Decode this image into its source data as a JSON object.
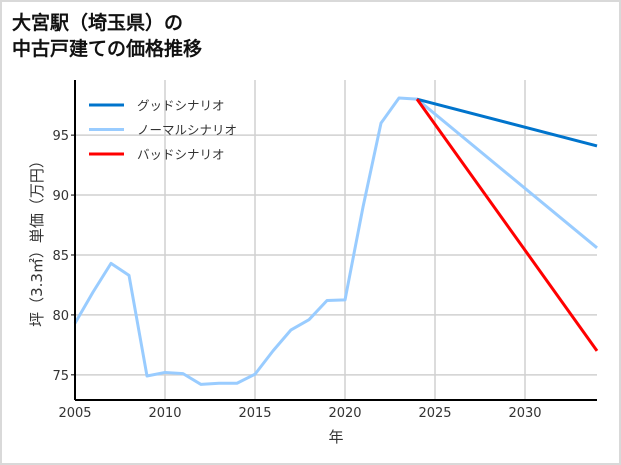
{
  "title_lines": [
    "大宮駅（埼玉県）の",
    "中古戸建ての価格推移"
  ],
  "chart_data": {
    "type": "line",
    "title": "大宮駅（埼玉県）の中古戸建ての価格推移",
    "xlabel": "年",
    "ylabel": "坪（3.3㎡）単価（万円）",
    "xlim": [
      2005,
      2034
    ],
    "ylim": [
      72.9,
      99.6
    ],
    "xticks": [
      2005,
      2010,
      2015,
      2020,
      2025,
      2030
    ],
    "yticks": [
      75,
      80,
      85,
      90,
      95
    ],
    "grid": true,
    "legend_position": "top-left",
    "series": [
      {
        "name": "グッドシナリオ",
        "color": "#0074cc",
        "x": [
          2024,
          2034
        ],
        "y": [
          98.0,
          94.1
        ]
      },
      {
        "name": "ノーマルシナリオ",
        "color": "#99ccff",
        "x": [
          2005,
          2006,
          2007,
          2008,
          2009,
          2010,
          2011,
          2012,
          2013,
          2014,
          2015,
          2016,
          2017,
          2018,
          2019,
          2020,
          2021,
          2022,
          2023,
          2024,
          2034
        ],
        "y": [
          79.3,
          81.9,
          84.3,
          83.3,
          74.9,
          75.2,
          75.1,
          74.2,
          74.3,
          74.3,
          75.05,
          77.0,
          78.75,
          79.6,
          81.2,
          81.25,
          89.0,
          96.0,
          98.1,
          98.0,
          85.6
        ]
      },
      {
        "name": "バッドシナリオ",
        "color": "#ff0000",
        "x": [
          2024,
          2034
        ],
        "y": [
          98.0,
          77.0
        ]
      }
    ]
  }
}
